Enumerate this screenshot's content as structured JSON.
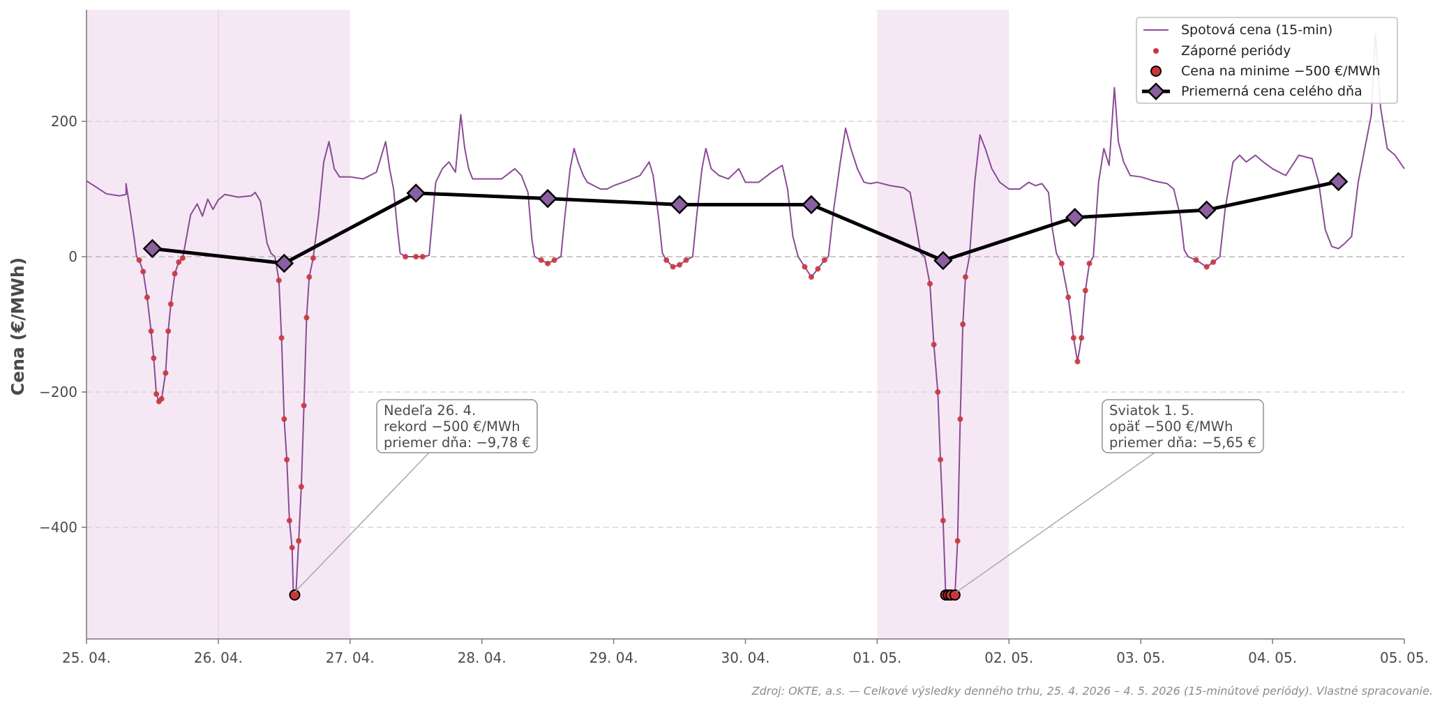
{
  "chart_data": {
    "type": "line",
    "ylabel": "Cena (€/MWh)",
    "ylim": [
      -565,
      365
    ],
    "yticks": [
      200,
      0,
      -200,
      -400
    ],
    "ytick_labels": [
      "200",
      "0",
      "−200",
      "−400"
    ],
    "grid": "horizontal-dashed",
    "xticks": [
      "25. 04.",
      "26. 04.",
      "27. 04.",
      "28. 04.",
      "29. 04.",
      "30. 04.",
      "01. 05.",
      "02. 05.",
      "03. 05.",
      "04. 05.",
      "05. 05."
    ],
    "shaded_periods": [
      [
        0,
        2
      ],
      [
        6,
        7
      ]
    ],
    "legend_position": "top-right",
    "series": [
      {
        "name": "Spotová cena (15-min)",
        "kind": "line",
        "color": "#8b4a96",
        "points": [
          [
            0,
            112
          ],
          [
            0.08,
            102
          ],
          [
            0.15,
            93
          ],
          [
            0.25,
            90
          ],
          [
            0.3,
            92
          ],
          [
            0.3,
            108
          ],
          [
            0.33,
            70
          ],
          [
            0.36,
            30
          ],
          [
            0.38,
            0
          ],
          [
            0.4,
            -5
          ],
          [
            0.43,
            -22
          ],
          [
            0.46,
            -60
          ],
          [
            0.49,
            -110
          ],
          [
            0.51,
            -150
          ],
          [
            0.53,
            -203
          ],
          [
            0.55,
            -214
          ],
          [
            0.57,
            -210
          ],
          [
            0.6,
            -172
          ],
          [
            0.62,
            -110
          ],
          [
            0.64,
            -70
          ],
          [
            0.67,
            -25
          ],
          [
            0.7,
            -8
          ],
          [
            0.73,
            -2
          ],
          [
            0.76,
            30
          ],
          [
            0.79,
            62
          ],
          [
            0.84,
            78
          ],
          [
            0.88,
            60
          ],
          [
            0.92,
            85
          ],
          [
            0.96,
            70
          ],
          [
            1.0,
            84
          ],
          [
            1.05,
            92
          ],
          [
            1.15,
            88
          ],
          [
            1.25,
            90
          ],
          [
            1.28,
            95
          ],
          [
            1.32,
            82
          ],
          [
            1.37,
            20
          ],
          [
            1.4,
            5
          ],
          [
            1.43,
            0
          ],
          [
            1.46,
            -35
          ],
          [
            1.48,
            -120
          ],
          [
            1.5,
            -240
          ],
          [
            1.52,
            -300
          ],
          [
            1.54,
            -390
          ],
          [
            1.56,
            -430
          ],
          [
            1.57,
            -500
          ],
          [
            1.59,
            -495
          ],
          [
            1.61,
            -420
          ],
          [
            1.63,
            -340
          ],
          [
            1.65,
            -220
          ],
          [
            1.67,
            -90
          ],
          [
            1.69,
            -30
          ],
          [
            1.72,
            -2
          ],
          [
            1.76,
            60
          ],
          [
            1.8,
            140
          ],
          [
            1.84,
            170
          ],
          [
            1.88,
            130
          ],
          [
            1.92,
            118
          ],
          [
            2.0,
            118
          ],
          [
            2.1,
            115
          ],
          [
            2.2,
            125
          ],
          [
            2.27,
            170
          ],
          [
            2.3,
            130
          ],
          [
            2.33,
            100
          ],
          [
            2.36,
            40
          ],
          [
            2.38,
            5
          ],
          [
            2.42,
            0
          ],
          [
            2.55,
            0
          ],
          [
            2.6,
            2
          ],
          [
            2.65,
            110
          ],
          [
            2.7,
            130
          ],
          [
            2.75,
            140
          ],
          [
            2.8,
            125
          ],
          [
            2.84,
            210
          ],
          [
            2.87,
            160
          ],
          [
            2.9,
            130
          ],
          [
            2.93,
            115
          ],
          [
            3.0,
            115
          ],
          [
            3.15,
            115
          ],
          [
            3.25,
            130
          ],
          [
            3.3,
            120
          ],
          [
            3.35,
            95
          ],
          [
            3.38,
            25
          ],
          [
            3.4,
            0
          ],
          [
            3.45,
            -5
          ],
          [
            3.5,
            -10
          ],
          [
            3.55,
            -5
          ],
          [
            3.6,
            0
          ],
          [
            3.63,
            60
          ],
          [
            3.67,
            130
          ],
          [
            3.7,
            160
          ],
          [
            3.73,
            140
          ],
          [
            3.77,
            120
          ],
          [
            3.8,
            110
          ],
          [
            3.85,
            105
          ],
          [
            3.9,
            100
          ],
          [
            3.95,
            100
          ],
          [
            4.0,
            105
          ],
          [
            4.1,
            112
          ],
          [
            4.2,
            120
          ],
          [
            4.27,
            140
          ],
          [
            4.3,
            120
          ],
          [
            4.34,
            60
          ],
          [
            4.37,
            5
          ],
          [
            4.4,
            -5
          ],
          [
            4.45,
            -15
          ],
          [
            4.5,
            -12
          ],
          [
            4.55,
            -5
          ],
          [
            4.6,
            0
          ],
          [
            4.63,
            60
          ],
          [
            4.67,
            130
          ],
          [
            4.7,
            160
          ],
          [
            4.74,
            130
          ],
          [
            4.8,
            120
          ],
          [
            4.87,
            115
          ],
          [
            4.95,
            130
          ],
          [
            5.0,
            110
          ],
          [
            5.1,
            110
          ],
          [
            5.2,
            125
          ],
          [
            5.28,
            135
          ],
          [
            5.32,
            100
          ],
          [
            5.36,
            30
          ],
          [
            5.4,
            0
          ],
          [
            5.45,
            -15
          ],
          [
            5.5,
            -30
          ],
          [
            5.55,
            -18
          ],
          [
            5.6,
            -5
          ],
          [
            5.63,
            0
          ],
          [
            5.67,
            70
          ],
          [
            5.72,
            140
          ],
          [
            5.76,
            190
          ],
          [
            5.8,
            160
          ],
          [
            5.85,
            130
          ],
          [
            5.9,
            110
          ],
          [
            5.95,
            108
          ],
          [
            6.0,
            110
          ],
          [
            6.1,
            105
          ],
          [
            6.2,
            102
          ],
          [
            6.25,
            95
          ],
          [
            6.3,
            40
          ],
          [
            6.33,
            5
          ],
          [
            6.36,
            0
          ],
          [
            6.4,
            -40
          ],
          [
            6.43,
            -130
          ],
          [
            6.46,
            -200
          ],
          [
            6.48,
            -300
          ],
          [
            6.5,
            -390
          ],
          [
            6.52,
            -500
          ],
          [
            6.56,
            -500
          ],
          [
            6.59,
            -500
          ],
          [
            6.61,
            -420
          ],
          [
            6.63,
            -240
          ],
          [
            6.65,
            -100
          ],
          [
            6.67,
            -30
          ],
          [
            6.7,
            0
          ],
          [
            6.74,
            110
          ],
          [
            6.78,
            180
          ],
          [
            6.82,
            160
          ],
          [
            6.87,
            130
          ],
          [
            6.93,
            110
          ],
          [
            7.0,
            100
          ],
          [
            7.08,
            100
          ],
          [
            7.15,
            110
          ],
          [
            7.2,
            105
          ],
          [
            7.25,
            108
          ],
          [
            7.3,
            95
          ],
          [
            7.33,
            40
          ],
          [
            7.36,
            5
          ],
          [
            7.4,
            -10
          ],
          [
            7.45,
            -60
          ],
          [
            7.49,
            -120
          ],
          [
            7.52,
            -155
          ],
          [
            7.55,
            -120
          ],
          [
            7.58,
            -50
          ],
          [
            7.61,
            -10
          ],
          [
            7.64,
            0
          ],
          [
            7.68,
            110
          ],
          [
            7.72,
            160
          ],
          [
            7.76,
            135
          ],
          [
            7.8,
            250
          ],
          [
            7.83,
            170
          ],
          [
            7.87,
            140
          ],
          [
            7.92,
            120
          ],
          [
            8.0,
            118
          ],
          [
            8.1,
            112
          ],
          [
            8.2,
            108
          ],
          [
            8.25,
            100
          ],
          [
            8.3,
            60
          ],
          [
            8.33,
            10
          ],
          [
            8.36,
            0
          ],
          [
            8.42,
            -5
          ],
          [
            8.5,
            -15
          ],
          [
            8.55,
            -8
          ],
          [
            8.6,
            0
          ],
          [
            8.64,
            70
          ],
          [
            8.7,
            140
          ],
          [
            8.75,
            150
          ],
          [
            8.8,
            140
          ],
          [
            8.87,
            150
          ],
          [
            8.93,
            140
          ],
          [
            9.0,
            130
          ],
          [
            9.1,
            120
          ],
          [
            9.2,
            150
          ],
          [
            9.3,
            145
          ],
          [
            9.35,
            110
          ],
          [
            9.4,
            40
          ],
          [
            9.45,
            15
          ],
          [
            9.5,
            12
          ],
          [
            9.55,
            20
          ],
          [
            9.6,
            30
          ],
          [
            9.65,
            110
          ],
          [
            9.7,
            160
          ],
          [
            9.75,
            210
          ],
          [
            9.78,
            330
          ],
          [
            9.82,
            220
          ],
          [
            9.87,
            160
          ],
          [
            9.93,
            150
          ],
          [
            10.0,
            130
          ]
        ]
      },
      {
        "name": "Záporné periódy",
        "kind": "scatter",
        "color": "#c9363a",
        "points": [
          [
            0.4,
            -5
          ],
          [
            0.43,
            -22
          ],
          [
            0.46,
            -60
          ],
          [
            0.49,
            -110
          ],
          [
            0.51,
            -150
          ],
          [
            0.53,
            -203
          ],
          [
            0.55,
            -214
          ],
          [
            0.57,
            -210
          ],
          [
            0.6,
            -172
          ],
          [
            0.62,
            -110
          ],
          [
            0.64,
            -70
          ],
          [
            0.67,
            -25
          ],
          [
            0.7,
            -8
          ],
          [
            0.73,
            -2
          ],
          [
            1.46,
            -35
          ],
          [
            1.48,
            -120
          ],
          [
            1.5,
            -240
          ],
          [
            1.52,
            -300
          ],
          [
            1.54,
            -390
          ],
          [
            1.56,
            -430
          ],
          [
            1.61,
            -420
          ],
          [
            1.63,
            -340
          ],
          [
            1.65,
            -220
          ],
          [
            1.67,
            -90
          ],
          [
            1.69,
            -30
          ],
          [
            1.72,
            -2
          ],
          [
            2.42,
            0
          ],
          [
            2.5,
            0
          ],
          [
            2.55,
            0
          ],
          [
            3.45,
            -5
          ],
          [
            3.5,
            -10
          ],
          [
            3.55,
            -5
          ],
          [
            4.4,
            -5
          ],
          [
            4.45,
            -15
          ],
          [
            4.5,
            -12
          ],
          [
            4.55,
            -5
          ],
          [
            5.45,
            -15
          ],
          [
            5.5,
            -30
          ],
          [
            5.55,
            -18
          ],
          [
            5.6,
            -5
          ],
          [
            6.4,
            -40
          ],
          [
            6.43,
            -130
          ],
          [
            6.46,
            -200
          ],
          [
            6.48,
            -300
          ],
          [
            6.5,
            -390
          ],
          [
            6.61,
            -420
          ],
          [
            6.63,
            -240
          ],
          [
            6.65,
            -100
          ],
          [
            6.67,
            -30
          ],
          [
            7.4,
            -10
          ],
          [
            7.45,
            -60
          ],
          [
            7.49,
            -120
          ],
          [
            7.52,
            -155
          ],
          [
            7.55,
            -120
          ],
          [
            7.58,
            -50
          ],
          [
            7.61,
            -10
          ],
          [
            8.42,
            -5
          ],
          [
            8.5,
            -15
          ],
          [
            8.55,
            -8
          ]
        ]
      },
      {
        "name": "Cena na minime −500 €/MWh",
        "kind": "scatter",
        "color": "#c9363a",
        "points": [
          [
            1.58,
            -500
          ],
          [
            6.52,
            -500
          ],
          [
            6.54,
            -500
          ],
          [
            6.56,
            -500
          ],
          [
            6.59,
            -500
          ]
        ]
      },
      {
        "name": "Priemerná cena celého dňa",
        "kind": "line-marker",
        "color": "#000000",
        "marker_color": "#8b5fa0",
        "points": [
          [
            0.5,
            12
          ],
          [
            1.5,
            -9.78
          ],
          [
            2.5,
            94
          ],
          [
            3.5,
            86
          ],
          [
            4.5,
            77
          ],
          [
            5.5,
            77
          ],
          [
            6.5,
            -5.65
          ],
          [
            7.5,
            58
          ],
          [
            8.5,
            69
          ],
          [
            9.5,
            111
          ]
        ]
      }
    ],
    "annotations": [
      {
        "lines": [
          "Nedeľa 26. 4.",
          "rekord −500 €/MWh",
          "priemer dňa: −9,78 €"
        ],
        "target": [
          1.58,
          -500
        ]
      },
      {
        "lines": [
          "Sviatok 1. 5.",
          "opäť −500 €/MWh",
          "priemer dňa: −5,65 €"
        ],
        "target": [
          6.6,
          -500
        ]
      }
    ],
    "source": "Zdroj: OKTE, a.s. — Celkové výsledky denného trhu, 25. 4. 2026 – 4. 5. 2026 (15-minútové periódy). Vlastné spracovanie."
  }
}
